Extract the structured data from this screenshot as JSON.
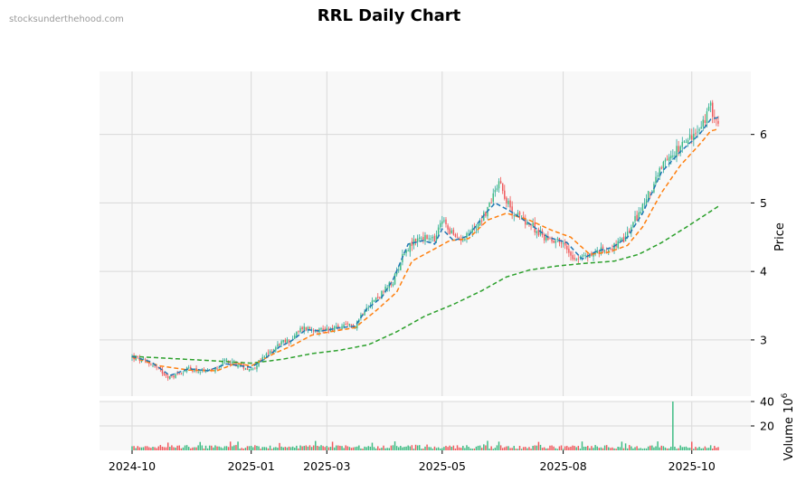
{
  "watermark": "stocksunderthehood.com",
  "title": "RRL Daily Chart",
  "chart_data": {
    "type": "candlestick",
    "title": "RRL Daily Chart",
    "price_axis": {
      "label": "Price",
      "ylim": [
        2.18,
        6.92
      ],
      "ticks": [
        3,
        4,
        5,
        6
      ]
    },
    "volume_axis": {
      "label": "Volume  10",
      "exponent": "6",
      "ylim": [
        0,
        40
      ],
      "ticks": [
        20,
        40
      ]
    },
    "x_axis": {
      "ticks": [
        "2024-10",
        "2025-01",
        "2025-03",
        "2025-05",
        "2025-08",
        "2025-10"
      ]
    },
    "grid": true,
    "colors": {
      "up": "#26a69a",
      "down": "#ef5350",
      "up_fill": "#3dbb82",
      "down_fill": "#f0595d",
      "ma_short": "#1f77b4",
      "ma_mid": "#ff7f0e",
      "ma_long": "#2ca02c",
      "panel_bg": "#f8f8f8",
      "grid": "#d9d9d9"
    },
    "price_keypoints": [
      [
        0,
        2.75
      ],
      [
        10,
        2.65
      ],
      [
        20,
        2.45
      ],
      [
        30,
        2.58
      ],
      [
        40,
        2.52
      ],
      [
        50,
        2.7
      ],
      [
        60,
        2.6
      ],
      [
        63,
        2.57
      ],
      [
        70,
        2.75
      ],
      [
        78,
        2.95
      ],
      [
        84,
        3.0
      ],
      [
        90,
        3.18
      ],
      [
        100,
        3.15
      ],
      [
        110,
        3.18
      ],
      [
        118,
        3.22
      ],
      [
        124,
        3.5
      ],
      [
        130,
        3.62
      ],
      [
        138,
        3.85
      ],
      [
        144,
        4.3
      ],
      [
        152,
        4.5
      ],
      [
        160,
        4.45
      ],
      [
        164,
        4.75
      ],
      [
        172,
        4.45
      ],
      [
        180,
        4.6
      ],
      [
        188,
        4.9
      ],
      [
        194,
        5.35
      ],
      [
        200,
        4.9
      ],
      [
        210,
        4.7
      ],
      [
        218,
        4.5
      ],
      [
        226,
        4.45
      ],
      [
        234,
        4.2
      ],
      [
        240,
        4.22
      ],
      [
        248,
        4.3
      ],
      [
        254,
        4.35
      ],
      [
        260,
        4.45
      ],
      [
        270,
        4.95
      ],
      [
        280,
        5.5
      ],
      [
        290,
        5.85
      ],
      [
        300,
        6.05
      ],
      [
        306,
        6.4
      ],
      [
        310,
        6.15
      ]
    ],
    "ma_short": [
      [
        0,
        2.76
      ],
      [
        10,
        2.68
      ],
      [
        20,
        2.48
      ],
      [
        30,
        2.58
      ],
      [
        40,
        2.55
      ],
      [
        50,
        2.65
      ],
      [
        63,
        2.6
      ],
      [
        70,
        2.72
      ],
      [
        78,
        2.9
      ],
      [
        84,
        2.98
      ],
      [
        92,
        3.15
      ],
      [
        100,
        3.13
      ],
      [
        110,
        3.18
      ],
      [
        118,
        3.2
      ],
      [
        124,
        3.45
      ],
      [
        132,
        3.62
      ],
      [
        138,
        3.88
      ],
      [
        146,
        4.4
      ],
      [
        154,
        4.45
      ],
      [
        160,
        4.4
      ],
      [
        164,
        4.62
      ],
      [
        170,
        4.45
      ],
      [
        178,
        4.52
      ],
      [
        186,
        4.82
      ],
      [
        192,
        5.0
      ],
      [
        200,
        4.88
      ],
      [
        210,
        4.7
      ],
      [
        220,
        4.5
      ],
      [
        230,
        4.42
      ],
      [
        238,
        4.18
      ],
      [
        246,
        4.3
      ],
      [
        254,
        4.35
      ],
      [
        262,
        4.5
      ],
      [
        270,
        4.85
      ],
      [
        280,
        5.45
      ],
      [
        290,
        5.75
      ],
      [
        300,
        6.0
      ],
      [
        306,
        6.22
      ],
      [
        310,
        6.25
      ]
    ],
    "ma_mid": [
      [
        0,
        2.75
      ],
      [
        15,
        2.62
      ],
      [
        30,
        2.56
      ],
      [
        45,
        2.55
      ],
      [
        55,
        2.66
      ],
      [
        63,
        2.62
      ],
      [
        75,
        2.8
      ],
      [
        85,
        2.92
      ],
      [
        95,
        3.07
      ],
      [
        105,
        3.12
      ],
      [
        118,
        3.18
      ],
      [
        130,
        3.45
      ],
      [
        140,
        3.7
      ],
      [
        148,
        4.15
      ],
      [
        158,
        4.3
      ],
      [
        168,
        4.45
      ],
      [
        178,
        4.48
      ],
      [
        188,
        4.75
      ],
      [
        198,
        4.85
      ],
      [
        210,
        4.75
      ],
      [
        222,
        4.6
      ],
      [
        232,
        4.5
      ],
      [
        242,
        4.25
      ],
      [
        252,
        4.28
      ],
      [
        262,
        4.38
      ],
      [
        270,
        4.65
      ],
      [
        280,
        5.15
      ],
      [
        290,
        5.55
      ],
      [
        300,
        5.85
      ],
      [
        306,
        6.05
      ],
      [
        310,
        6.08
      ]
    ],
    "ma_long": [
      [
        0,
        2.76
      ],
      [
        20,
        2.73
      ],
      [
        40,
        2.7
      ],
      [
        63,
        2.66
      ],
      [
        80,
        2.72
      ],
      [
        95,
        2.8
      ],
      [
        110,
        2.85
      ],
      [
        125,
        2.93
      ],
      [
        140,
        3.12
      ],
      [
        155,
        3.35
      ],
      [
        170,
        3.52
      ],
      [
        185,
        3.72
      ],
      [
        198,
        3.92
      ],
      [
        210,
        4.02
      ],
      [
        225,
        4.08
      ],
      [
        240,
        4.12
      ],
      [
        255,
        4.15
      ],
      [
        268,
        4.25
      ],
      [
        280,
        4.42
      ],
      [
        295,
        4.68
      ],
      [
        310,
        4.95
      ]
    ]
  }
}
